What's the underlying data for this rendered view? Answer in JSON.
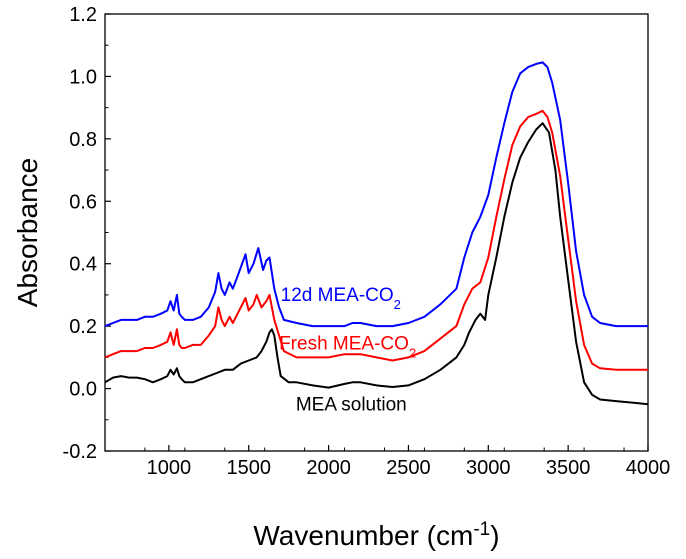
{
  "chart_data": {
    "type": "line",
    "title": "",
    "xlabel": "Wavenumber (cm",
    "xlabel_sup": "-1",
    "xlabel_close": ")",
    "ylabel": "Absorbance",
    "xlim": [
      600,
      4000
    ],
    "ylim": [
      -0.2,
      1.2
    ],
    "xticks": [
      1000,
      1500,
      2000,
      2500,
      3000,
      3500,
      4000
    ],
    "yticks": [
      -0.2,
      0.0,
      0.2,
      0.4,
      0.6,
      0.8,
      1.0,
      1.2
    ],
    "grid": false,
    "series": [
      {
        "name": "MEA solution",
        "label": "MEA solution",
        "label_sub": "",
        "color": "#000000",
        "points": [
          [
            600,
            0.02
          ],
          [
            650,
            0.035
          ],
          [
            700,
            0.04
          ],
          [
            750,
            0.035
          ],
          [
            800,
            0.035
          ],
          [
            850,
            0.03
          ],
          [
            900,
            0.02
          ],
          [
            950,
            0.03
          ],
          [
            990,
            0.04
          ],
          [
            1010,
            0.06
          ],
          [
            1030,
            0.045
          ],
          [
            1050,
            0.065
          ],
          [
            1065,
            0.04
          ],
          [
            1080,
            0.03
          ],
          [
            1100,
            0.02
          ],
          [
            1150,
            0.02
          ],
          [
            1200,
            0.03
          ],
          [
            1250,
            0.04
          ],
          [
            1300,
            0.05
          ],
          [
            1350,
            0.06
          ],
          [
            1400,
            0.06
          ],
          [
            1450,
            0.08
          ],
          [
            1500,
            0.09
          ],
          [
            1550,
            0.1
          ],
          [
            1580,
            0.12
          ],
          [
            1610,
            0.15
          ],
          [
            1630,
            0.18
          ],
          [
            1645,
            0.19
          ],
          [
            1660,
            0.17
          ],
          [
            1680,
            0.1
          ],
          [
            1700,
            0.04
          ],
          [
            1750,
            0.02
          ],
          [
            1800,
            0.02
          ],
          [
            1900,
            0.01
          ],
          [
            2000,
            0.003
          ],
          [
            2100,
            0.015
          ],
          [
            2150,
            0.02
          ],
          [
            2200,
            0.02
          ],
          [
            2300,
            0.01
          ],
          [
            2400,
            0.005
          ],
          [
            2500,
            0.01
          ],
          [
            2600,
            0.03
          ],
          [
            2700,
            0.06
          ],
          [
            2800,
            0.1
          ],
          [
            2850,
            0.14
          ],
          [
            2880,
            0.18
          ],
          [
            2920,
            0.22
          ],
          [
            2950,
            0.24
          ],
          [
            2980,
            0.22
          ],
          [
            3000,
            0.3
          ],
          [
            3050,
            0.42
          ],
          [
            3100,
            0.55
          ],
          [
            3150,
            0.66
          ],
          [
            3200,
            0.74
          ],
          [
            3250,
            0.79
          ],
          [
            3300,
            0.83
          ],
          [
            3340,
            0.85
          ],
          [
            3380,
            0.82
          ],
          [
            3420,
            0.7
          ],
          [
            3450,
            0.55
          ],
          [
            3500,
            0.35
          ],
          [
            3550,
            0.15
          ],
          [
            3600,
            0.02
          ],
          [
            3650,
            -0.02
          ],
          [
            3700,
            -0.035
          ],
          [
            3800,
            -0.04
          ],
          [
            3900,
            -0.045
          ],
          [
            4000,
            -0.05
          ]
        ]
      },
      {
        "name": "Fresh MEA-CO2",
        "label": "Fresh MEA-CO",
        "label_sub": "2",
        "color": "#ff0000",
        "points": [
          [
            600,
            0.1
          ],
          [
            650,
            0.11
          ],
          [
            700,
            0.12
          ],
          [
            750,
            0.12
          ],
          [
            800,
            0.12
          ],
          [
            850,
            0.13
          ],
          [
            900,
            0.13
          ],
          [
            950,
            0.14
          ],
          [
            990,
            0.15
          ],
          [
            1010,
            0.18
          ],
          [
            1030,
            0.14
          ],
          [
            1050,
            0.19
          ],
          [
            1065,
            0.14
          ],
          [
            1080,
            0.13
          ],
          [
            1100,
            0.13
          ],
          [
            1150,
            0.14
          ],
          [
            1200,
            0.14
          ],
          [
            1250,
            0.17
          ],
          [
            1290,
            0.2
          ],
          [
            1310,
            0.26
          ],
          [
            1330,
            0.22
          ],
          [
            1350,
            0.2
          ],
          [
            1380,
            0.23
          ],
          [
            1400,
            0.21
          ],
          [
            1430,
            0.24
          ],
          [
            1480,
            0.29
          ],
          [
            1500,
            0.25
          ],
          [
            1530,
            0.27
          ],
          [
            1550,
            0.3
          ],
          [
            1580,
            0.26
          ],
          [
            1610,
            0.28
          ],
          [
            1630,
            0.3
          ],
          [
            1660,
            0.22
          ],
          [
            1690,
            0.17
          ],
          [
            1720,
            0.12
          ],
          [
            1800,
            0.1
          ],
          [
            1900,
            0.1
          ],
          [
            2000,
            0.1
          ],
          [
            2100,
            0.11
          ],
          [
            2150,
            0.11
          ],
          [
            2200,
            0.11
          ],
          [
            2300,
            0.1
          ],
          [
            2400,
            0.09
          ],
          [
            2500,
            0.1
          ],
          [
            2600,
            0.12
          ],
          [
            2700,
            0.16
          ],
          [
            2800,
            0.2
          ],
          [
            2850,
            0.27
          ],
          [
            2900,
            0.32
          ],
          [
            2950,
            0.34
          ],
          [
            3000,
            0.42
          ],
          [
            3050,
            0.55
          ],
          [
            3100,
            0.67
          ],
          [
            3150,
            0.78
          ],
          [
            3200,
            0.84
          ],
          [
            3250,
            0.87
          ],
          [
            3300,
            0.88
          ],
          [
            3340,
            0.89
          ],
          [
            3370,
            0.87
          ],
          [
            3400,
            0.82
          ],
          [
            3450,
            0.68
          ],
          [
            3500,
            0.48
          ],
          [
            3550,
            0.28
          ],
          [
            3600,
            0.14
          ],
          [
            3650,
            0.08
          ],
          [
            3700,
            0.065
          ],
          [
            3800,
            0.06
          ],
          [
            3900,
            0.06
          ],
          [
            4000,
            0.06
          ]
        ]
      },
      {
        "name": "12d MEA-CO2",
        "label": "12d MEA-CO",
        "label_sub": "2",
        "color": "#0000ff",
        "points": [
          [
            600,
            0.2
          ],
          [
            650,
            0.21
          ],
          [
            700,
            0.22
          ],
          [
            750,
            0.22
          ],
          [
            800,
            0.22
          ],
          [
            850,
            0.23
          ],
          [
            900,
            0.23
          ],
          [
            950,
            0.24
          ],
          [
            990,
            0.25
          ],
          [
            1010,
            0.28
          ],
          [
            1030,
            0.25
          ],
          [
            1050,
            0.3
          ],
          [
            1065,
            0.24
          ],
          [
            1080,
            0.23
          ],
          [
            1100,
            0.22
          ],
          [
            1150,
            0.22
          ],
          [
            1200,
            0.23
          ],
          [
            1250,
            0.26
          ],
          [
            1290,
            0.31
          ],
          [
            1310,
            0.37
          ],
          [
            1330,
            0.32
          ],
          [
            1350,
            0.3
          ],
          [
            1380,
            0.34
          ],
          [
            1400,
            0.32
          ],
          [
            1430,
            0.36
          ],
          [
            1480,
            0.43
          ],
          [
            1500,
            0.37
          ],
          [
            1530,
            0.4
          ],
          [
            1560,
            0.45
          ],
          [
            1590,
            0.38
          ],
          [
            1610,
            0.41
          ],
          [
            1630,
            0.42
          ],
          [
            1660,
            0.32
          ],
          [
            1690,
            0.26
          ],
          [
            1720,
            0.22
          ],
          [
            1800,
            0.21
          ],
          [
            1900,
            0.2
          ],
          [
            2000,
            0.2
          ],
          [
            2100,
            0.2
          ],
          [
            2150,
            0.21
          ],
          [
            2200,
            0.21
          ],
          [
            2300,
            0.2
          ],
          [
            2400,
            0.2
          ],
          [
            2500,
            0.21
          ],
          [
            2600,
            0.23
          ],
          [
            2700,
            0.27
          ],
          [
            2800,
            0.32
          ],
          [
            2850,
            0.42
          ],
          [
            2900,
            0.5
          ],
          [
            2950,
            0.55
          ],
          [
            3000,
            0.62
          ],
          [
            3050,
            0.74
          ],
          [
            3100,
            0.85
          ],
          [
            3150,
            0.95
          ],
          [
            3200,
            1.01
          ],
          [
            3250,
            1.03
          ],
          [
            3300,
            1.04
          ],
          [
            3340,
            1.045
          ],
          [
            3370,
            1.03
          ],
          [
            3400,
            0.98
          ],
          [
            3450,
            0.86
          ],
          [
            3500,
            0.66
          ],
          [
            3550,
            0.44
          ],
          [
            3600,
            0.3
          ],
          [
            3650,
            0.23
          ],
          [
            3700,
            0.21
          ],
          [
            3800,
            0.2
          ],
          [
            3900,
            0.2
          ],
          [
            4000,
            0.2
          ]
        ]
      }
    ]
  }
}
